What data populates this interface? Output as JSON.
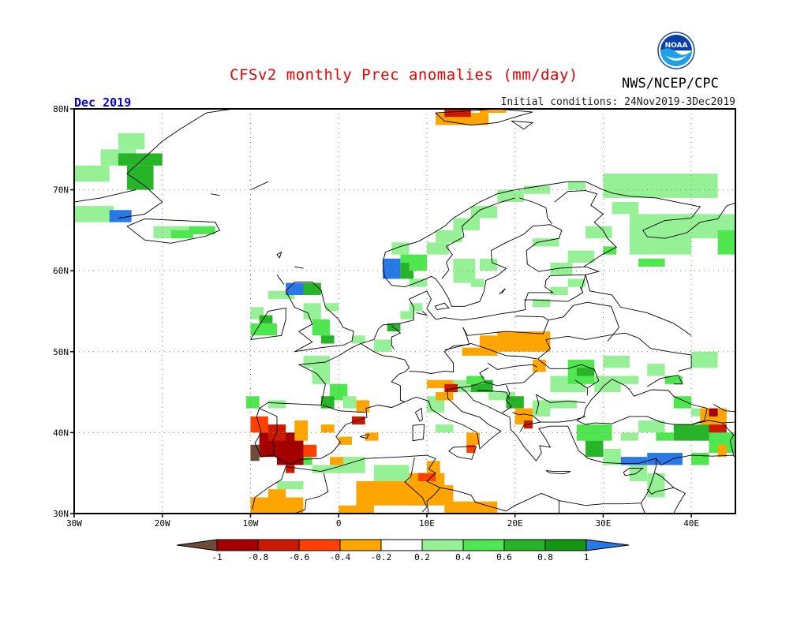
{
  "title": "CFSv2 monthly Prec anomalies (mm/day)",
  "agency": "NWS/NCEP/CPC",
  "logo_text": "NOAA",
  "forecast_month": "Dec 2019",
  "initial_conditions": "Initial conditions: 24Nov2019-3Dec2019",
  "map": {
    "projection": "lat-lon",
    "lon_range": [
      -30,
      45
    ],
    "lat_range": [
      30,
      80
    ],
    "lat_ticks": [
      "30N",
      "40N",
      "50N",
      "60N",
      "70N",
      "80N"
    ],
    "lon_ticks": [
      "30W",
      "20W",
      "10W",
      "0",
      "10E",
      "20E",
      "30E",
      "40E"
    ],
    "grid": "dotted"
  },
  "colorbar": {
    "labels": [
      "-1",
      "-0.8",
      "-0.6",
      "-0.4",
      "-0.2",
      "0.2",
      "0.4",
      "0.6",
      "0.8",
      "1"
    ],
    "colors": {
      "below_min": "#6e4a3a",
      "b1": "#a50000",
      "b2": "#cc1a00",
      "b3": "#ff4000",
      "b4": "#ffa500",
      "neutral": "#ffffff",
      "g1": "#96f096",
      "g2": "#50e650",
      "g3": "#28b428",
      "g4": "#129612",
      "above_max": "#2878e6"
    }
  }
}
